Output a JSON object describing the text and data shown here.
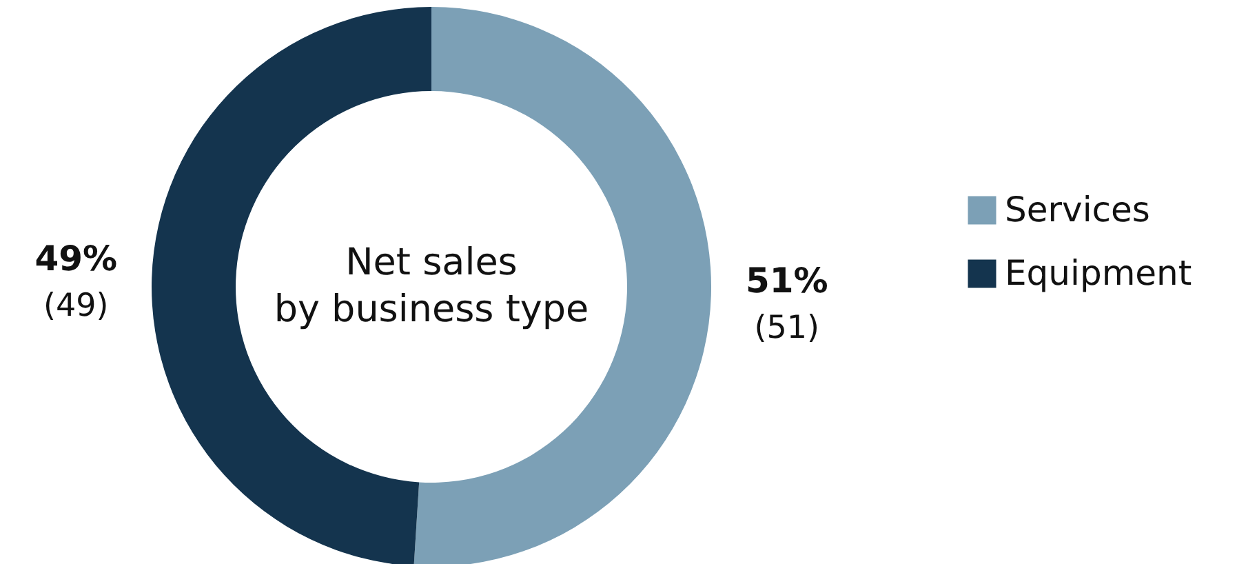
{
  "chart_data": {
    "type": "donut",
    "title": "Net sales\nby business type",
    "categories": [
      "Services",
      "Equipment"
    ],
    "values": [
      51,
      49
    ],
    "colors": [
      "#7ca0b6",
      "#14344e"
    ],
    "value_labels": [
      "51%",
      "49%"
    ],
    "annotations": [
      "(51)",
      "(49)"
    ],
    "legend": "right"
  }
}
